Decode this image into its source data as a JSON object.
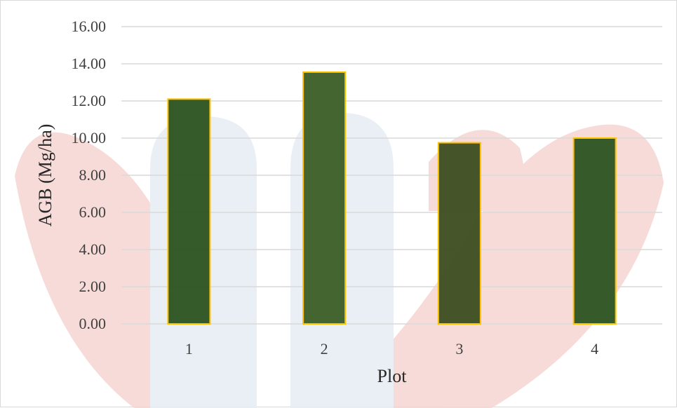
{
  "chart_data": {
    "type": "bar",
    "title": "",
    "xlabel": "Plot",
    "ylabel": "AGB (Mg/ha)",
    "categories": [
      "1",
      "2",
      "3",
      "4"
    ],
    "values": [
      12.1,
      13.55,
      9.75,
      10.0
    ],
    "ylim": [
      0,
      16
    ],
    "yticks": [
      "0.00",
      "2.00",
      "4.00",
      "6.00",
      "8.00",
      "10.00",
      "12.00",
      "14.00",
      "16.00"
    ],
    "grid": true,
    "legend": "none",
    "colors": {
      "bar_fills": [
        "#2f5623",
        "#3f6029",
        "#404f23",
        "#2f5623"
      ],
      "bar_stroke": "#ffc000",
      "gridline": "#d9d9d9",
      "watermark_red": "#f6d5d2",
      "watermark_blue": "#e6edf3"
    }
  }
}
